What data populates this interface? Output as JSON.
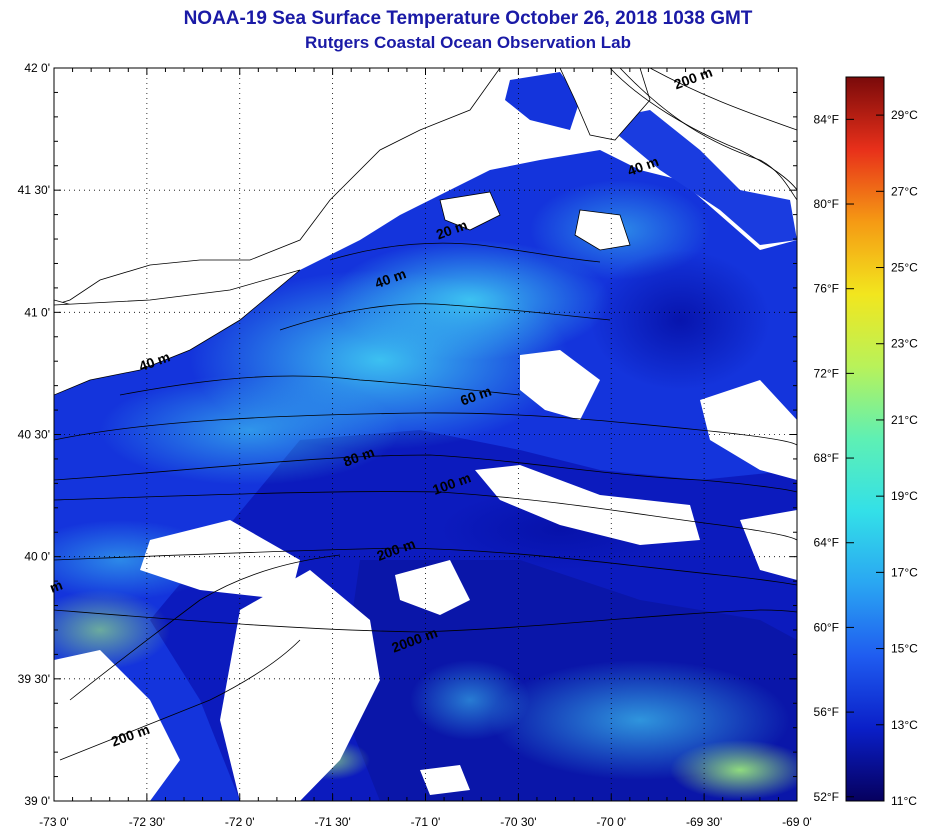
{
  "title": "NOAA-19 Sea Surface Temperature October 26, 2018 1038 GMT",
  "subtitle": "Rutgers Coastal Ocean Observation Lab",
  "lat_ticks": [
    {
      "value": 42.0,
      "label": "42 0'"
    },
    {
      "value": 41.5,
      "label": "41 30'"
    },
    {
      "value": 41.0,
      "label": "41 0'"
    },
    {
      "value": 40.5,
      "label": "40 30'"
    },
    {
      "value": 40.0,
      "label": "40 0'"
    },
    {
      "value": 39.5,
      "label": "39 30'"
    },
    {
      "value": 39.0,
      "label": "39 0'"
    }
  ],
  "lon_ticks": [
    {
      "value": -73.0,
      "label": "-73 0'"
    },
    {
      "value": -72.5,
      "label": "-72 30'"
    },
    {
      "value": -72.0,
      "label": "-72 0'"
    },
    {
      "value": -71.5,
      "label": "-71 30'"
    },
    {
      "value": -71.0,
      "label": "-71 0'"
    },
    {
      "value": -70.5,
      "label": "-70 30'"
    },
    {
      "value": -70.0,
      "label": "-70 0'"
    },
    {
      "value": -69.5,
      "label": "-69 30'"
    },
    {
      "value": -69.0,
      "label": "-69 0'"
    }
  ],
  "colorbar": {
    "min_c": 11,
    "max_c": 30,
    "celsius_ticks": [
      {
        "value": 29,
        "label": "29°C"
      },
      {
        "value": 27,
        "label": "27°C"
      },
      {
        "value": 25,
        "label": "25°C"
      },
      {
        "value": 23,
        "label": "23°C"
      },
      {
        "value": 21,
        "label": "21°C"
      },
      {
        "value": 19,
        "label": "19°C"
      },
      {
        "value": 17,
        "label": "17°C"
      },
      {
        "value": 15,
        "label": "15°C"
      },
      {
        "value": 13,
        "label": "13°C"
      },
      {
        "value": 11,
        "label": "11°C"
      }
    ],
    "fahrenheit_ticks": [
      {
        "value": 84,
        "label": "84°F"
      },
      {
        "value": 80,
        "label": "80°F"
      },
      {
        "value": 76,
        "label": "76°F"
      },
      {
        "value": 72,
        "label": "72°F"
      },
      {
        "value": 68,
        "label": "68°F"
      },
      {
        "value": 64,
        "label": "64°F"
      },
      {
        "value": 60,
        "label": "60°F"
      },
      {
        "value": 56,
        "label": "56°F"
      },
      {
        "value": 52,
        "label": "52°F"
      }
    ],
    "colors": [
      "#06005e",
      "#0a1fc8",
      "#1f5cf0",
      "#2aa6f2",
      "#33e0e8",
      "#5ef0b4",
      "#b8f25a",
      "#f2e61e",
      "#f59a14",
      "#e8301a",
      "#7a0a0a"
    ]
  },
  "isobaths": [
    {
      "label": "200 m",
      "lon": -69.55,
      "lat": 41.94
    },
    {
      "label": "40 m",
      "lon": -69.82,
      "lat": 41.58
    },
    {
      "label": "20 m",
      "lon": -70.85,
      "lat": 41.32
    },
    {
      "label": "40 m",
      "lon": -71.18,
      "lat": 41.12
    },
    {
      "label": "40 m",
      "lon": -72.45,
      "lat": 40.78
    },
    {
      "label": "60 m",
      "lon": -70.72,
      "lat": 40.64
    },
    {
      "label": "80 m",
      "lon": -71.35,
      "lat": 40.39
    },
    {
      "label": "100 m",
      "lon": -70.85,
      "lat": 40.28
    },
    {
      "label": "200 m",
      "lon": -71.15,
      "lat": 40.01
    },
    {
      "label": "2000 m",
      "lon": -71.05,
      "lat": 39.64
    },
    {
      "label": "m",
      "lon": -72.98,
      "lat": 39.86
    },
    {
      "label": "200 m",
      "lon": -72.58,
      "lat": 39.25
    }
  ]
}
